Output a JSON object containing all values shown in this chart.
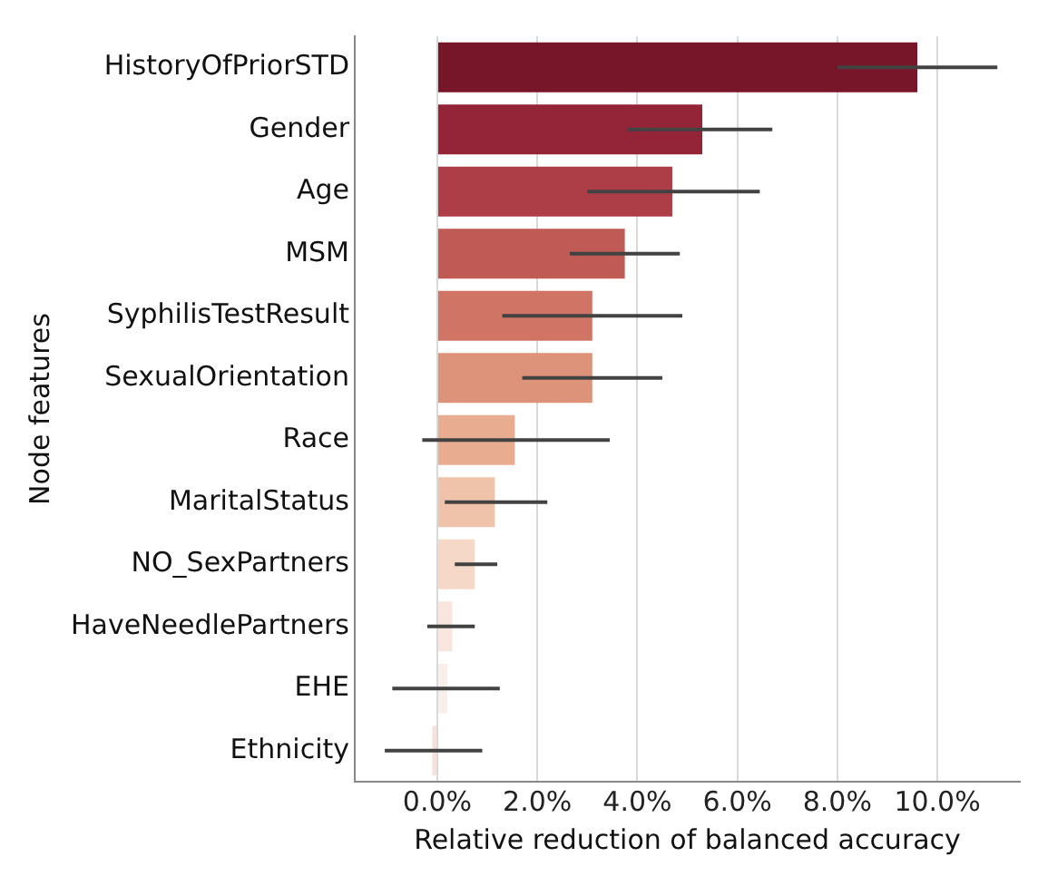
{
  "chart_data": {
    "type": "bar",
    "orientation": "horizontal",
    "xlabel": "Relative reduction of balanced accuracy",
    "ylabel": "Node features",
    "categories": [
      "HistoryOfPriorSTD",
      "Gender",
      "Age",
      "MSM",
      "SyphilisTestResult",
      "SexualOrientation",
      "Race",
      "MaritalStatus",
      "NO_SexPartners",
      "HaveNeedlePartners",
      "EHE",
      "Ethnicity"
    ],
    "values": [
      9.6,
      5.3,
      4.7,
      3.75,
      3.1,
      3.1,
      1.55,
      1.15,
      0.75,
      0.3,
      0.2,
      -0.1
    ],
    "colors": [
      "#781629",
      "#942538",
      "#ad3d47",
      "#c05a54",
      "#d07565",
      "#dc937a",
      "#e8ad90",
      "#efc3aa",
      "#f6d8c8",
      "#f8e6de",
      "#f9efea",
      "#f3e3dc"
    ],
    "errors": [
      [
        8.0,
        11.2
      ],
      [
        3.8,
        6.7
      ],
      [
        3.0,
        6.45
      ],
      [
        2.65,
        4.85
      ],
      [
        1.3,
        4.9
      ],
      [
        1.7,
        4.5
      ],
      [
        -0.3,
        3.45
      ],
      [
        0.15,
        2.2
      ],
      [
        0.35,
        1.2
      ],
      [
        -0.2,
        0.75
      ],
      [
        -0.9,
        1.25
      ],
      [
        -1.05,
        0.9
      ]
    ],
    "xlim": [
      -1.65,
      11.65
    ],
    "xticks": [
      {
        "value": 0,
        "label": "0.0%"
      },
      {
        "value": 2,
        "label": "2.0%"
      },
      {
        "value": 4,
        "label": "4.0%"
      },
      {
        "value": 6,
        "label": "6.0%"
      },
      {
        "value": 8,
        "label": "8.0%"
      },
      {
        "value": 10,
        "label": "10.0%"
      }
    ],
    "grid": "x"
  }
}
